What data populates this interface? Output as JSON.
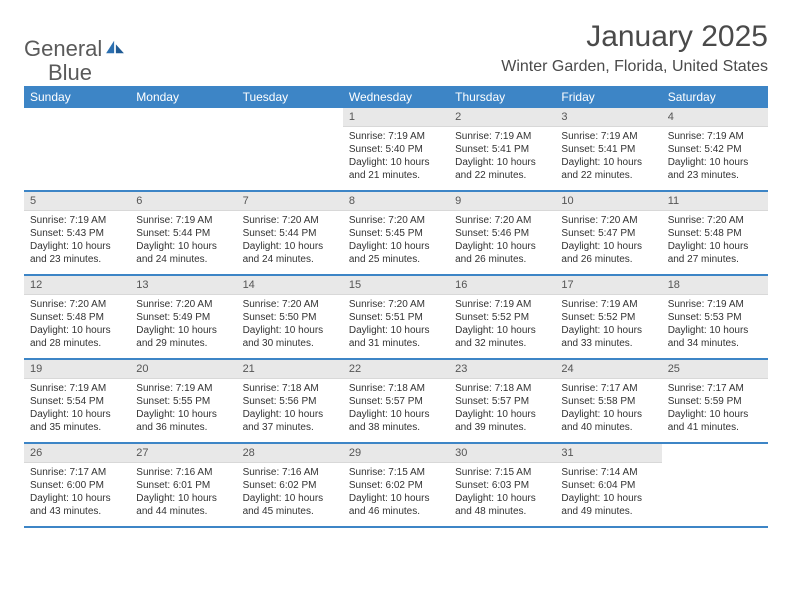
{
  "brand": {
    "word1": "General",
    "word2": "Blue"
  },
  "title": "January 2025",
  "location": "Winter Garden, Florida, United States",
  "colors": {
    "headerBar": "#3d85c6",
    "headerText": "#ffffff",
    "dateBg": "#e8e8e8",
    "ruleColor": "#3d85c6",
    "bodyText": "#333333",
    "titleText": "#4a4a4a",
    "logoGray": "#5a5a5a",
    "logoBlue": "#2b6fb0"
  },
  "weekdays": [
    "Sunday",
    "Monday",
    "Tuesday",
    "Wednesday",
    "Thursday",
    "Friday",
    "Saturday"
  ],
  "weeks": [
    [
      null,
      null,
      null,
      {
        "n": "1",
        "sr": "Sunrise: 7:19 AM",
        "ss": "Sunset: 5:40 PM",
        "d1": "Daylight: 10 hours",
        "d2": "and 21 minutes."
      },
      {
        "n": "2",
        "sr": "Sunrise: 7:19 AM",
        "ss": "Sunset: 5:41 PM",
        "d1": "Daylight: 10 hours",
        "d2": "and 22 minutes."
      },
      {
        "n": "3",
        "sr": "Sunrise: 7:19 AM",
        "ss": "Sunset: 5:41 PM",
        "d1": "Daylight: 10 hours",
        "d2": "and 22 minutes."
      },
      {
        "n": "4",
        "sr": "Sunrise: 7:19 AM",
        "ss": "Sunset: 5:42 PM",
        "d1": "Daylight: 10 hours",
        "d2": "and 23 minutes."
      }
    ],
    [
      {
        "n": "5",
        "sr": "Sunrise: 7:19 AM",
        "ss": "Sunset: 5:43 PM",
        "d1": "Daylight: 10 hours",
        "d2": "and 23 minutes."
      },
      {
        "n": "6",
        "sr": "Sunrise: 7:19 AM",
        "ss": "Sunset: 5:44 PM",
        "d1": "Daylight: 10 hours",
        "d2": "and 24 minutes."
      },
      {
        "n": "7",
        "sr": "Sunrise: 7:20 AM",
        "ss": "Sunset: 5:44 PM",
        "d1": "Daylight: 10 hours",
        "d2": "and 24 minutes."
      },
      {
        "n": "8",
        "sr": "Sunrise: 7:20 AM",
        "ss": "Sunset: 5:45 PM",
        "d1": "Daylight: 10 hours",
        "d2": "and 25 minutes."
      },
      {
        "n": "9",
        "sr": "Sunrise: 7:20 AM",
        "ss": "Sunset: 5:46 PM",
        "d1": "Daylight: 10 hours",
        "d2": "and 26 minutes."
      },
      {
        "n": "10",
        "sr": "Sunrise: 7:20 AM",
        "ss": "Sunset: 5:47 PM",
        "d1": "Daylight: 10 hours",
        "d2": "and 26 minutes."
      },
      {
        "n": "11",
        "sr": "Sunrise: 7:20 AM",
        "ss": "Sunset: 5:48 PM",
        "d1": "Daylight: 10 hours",
        "d2": "and 27 minutes."
      }
    ],
    [
      {
        "n": "12",
        "sr": "Sunrise: 7:20 AM",
        "ss": "Sunset: 5:48 PM",
        "d1": "Daylight: 10 hours",
        "d2": "and 28 minutes."
      },
      {
        "n": "13",
        "sr": "Sunrise: 7:20 AM",
        "ss": "Sunset: 5:49 PM",
        "d1": "Daylight: 10 hours",
        "d2": "and 29 minutes."
      },
      {
        "n": "14",
        "sr": "Sunrise: 7:20 AM",
        "ss": "Sunset: 5:50 PM",
        "d1": "Daylight: 10 hours",
        "d2": "and 30 minutes."
      },
      {
        "n": "15",
        "sr": "Sunrise: 7:20 AM",
        "ss": "Sunset: 5:51 PM",
        "d1": "Daylight: 10 hours",
        "d2": "and 31 minutes."
      },
      {
        "n": "16",
        "sr": "Sunrise: 7:19 AM",
        "ss": "Sunset: 5:52 PM",
        "d1": "Daylight: 10 hours",
        "d2": "and 32 minutes."
      },
      {
        "n": "17",
        "sr": "Sunrise: 7:19 AM",
        "ss": "Sunset: 5:52 PM",
        "d1": "Daylight: 10 hours",
        "d2": "and 33 minutes."
      },
      {
        "n": "18",
        "sr": "Sunrise: 7:19 AM",
        "ss": "Sunset: 5:53 PM",
        "d1": "Daylight: 10 hours",
        "d2": "and 34 minutes."
      }
    ],
    [
      {
        "n": "19",
        "sr": "Sunrise: 7:19 AM",
        "ss": "Sunset: 5:54 PM",
        "d1": "Daylight: 10 hours",
        "d2": "and 35 minutes."
      },
      {
        "n": "20",
        "sr": "Sunrise: 7:19 AM",
        "ss": "Sunset: 5:55 PM",
        "d1": "Daylight: 10 hours",
        "d2": "and 36 minutes."
      },
      {
        "n": "21",
        "sr": "Sunrise: 7:18 AM",
        "ss": "Sunset: 5:56 PM",
        "d1": "Daylight: 10 hours",
        "d2": "and 37 minutes."
      },
      {
        "n": "22",
        "sr": "Sunrise: 7:18 AM",
        "ss": "Sunset: 5:57 PM",
        "d1": "Daylight: 10 hours",
        "d2": "and 38 minutes."
      },
      {
        "n": "23",
        "sr": "Sunrise: 7:18 AM",
        "ss": "Sunset: 5:57 PM",
        "d1": "Daylight: 10 hours",
        "d2": "and 39 minutes."
      },
      {
        "n": "24",
        "sr": "Sunrise: 7:17 AM",
        "ss": "Sunset: 5:58 PM",
        "d1": "Daylight: 10 hours",
        "d2": "and 40 minutes."
      },
      {
        "n": "25",
        "sr": "Sunrise: 7:17 AM",
        "ss": "Sunset: 5:59 PM",
        "d1": "Daylight: 10 hours",
        "d2": "and 41 minutes."
      }
    ],
    [
      {
        "n": "26",
        "sr": "Sunrise: 7:17 AM",
        "ss": "Sunset: 6:00 PM",
        "d1": "Daylight: 10 hours",
        "d2": "and 43 minutes."
      },
      {
        "n": "27",
        "sr": "Sunrise: 7:16 AM",
        "ss": "Sunset: 6:01 PM",
        "d1": "Daylight: 10 hours",
        "d2": "and 44 minutes."
      },
      {
        "n": "28",
        "sr": "Sunrise: 7:16 AM",
        "ss": "Sunset: 6:02 PM",
        "d1": "Daylight: 10 hours",
        "d2": "and 45 minutes."
      },
      {
        "n": "29",
        "sr": "Sunrise: 7:15 AM",
        "ss": "Sunset: 6:02 PM",
        "d1": "Daylight: 10 hours",
        "d2": "and 46 minutes."
      },
      {
        "n": "30",
        "sr": "Sunrise: 7:15 AM",
        "ss": "Sunset: 6:03 PM",
        "d1": "Daylight: 10 hours",
        "d2": "and 48 minutes."
      },
      {
        "n": "31",
        "sr": "Sunrise: 7:14 AM",
        "ss": "Sunset: 6:04 PM",
        "d1": "Daylight: 10 hours",
        "d2": "and 49 minutes."
      },
      null
    ]
  ]
}
